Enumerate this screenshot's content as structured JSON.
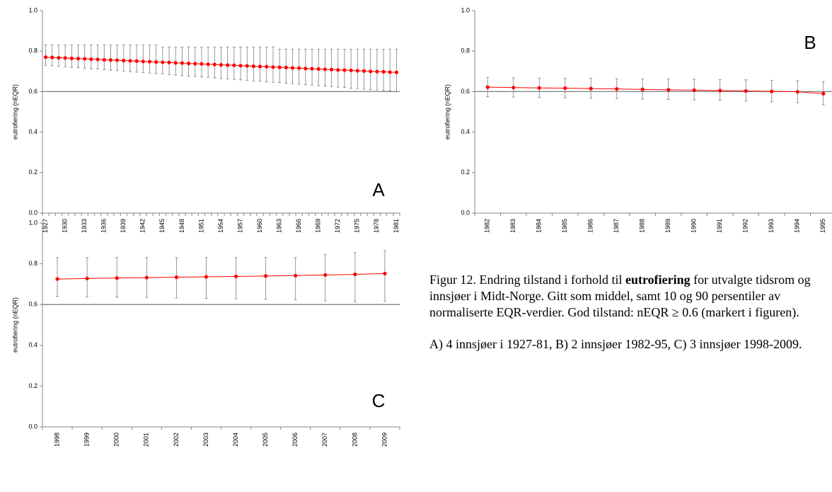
{
  "chart_data": [
    {
      "type": "line",
      "label": "A",
      "y_label": "eutrofiering (nEQR)",
      "categories": [
        "1927",
        null,
        null,
        "1930",
        null,
        null,
        "1933",
        null,
        null,
        "1936",
        null,
        null,
        "1939",
        null,
        null,
        "1942",
        null,
        null,
        "1945",
        null,
        null,
        "1948",
        null,
        null,
        "1951",
        null,
        null,
        "1954",
        null,
        null,
        "1957",
        null,
        null,
        "1960",
        null,
        null,
        "1963",
        null,
        null,
        "1966",
        null,
        null,
        "1969",
        null,
        null,
        "1972",
        null,
        null,
        "1975",
        null,
        null,
        "1978",
        null,
        null,
        "1981"
      ],
      "series": [
        {
          "color": "#ff0000",
          "values": [
            0.77,
            0.769,
            0.767,
            0.766,
            0.764,
            0.763,
            0.762,
            0.76,
            0.759,
            0.757,
            0.756,
            0.755,
            0.753,
            0.752,
            0.751,
            0.749,
            0.748,
            0.746,
            0.745,
            0.744,
            0.742,
            0.741,
            0.739,
            0.738,
            0.737,
            0.735,
            0.734,
            0.732,
            0.731,
            0.73,
            0.728,
            0.727,
            0.725,
            0.724,
            0.723,
            0.721,
            0.72,
            0.719,
            0.717,
            0.716,
            0.714,
            0.713,
            0.712,
            0.71,
            0.709,
            0.707,
            0.706,
            0.705,
            0.703,
            0.702,
            0.7,
            0.699,
            0.698,
            0.696,
            0.695
          ],
          "upper": [
            0.83,
            0.83,
            0.83,
            0.83,
            0.83,
            0.83,
            0.83,
            0.83,
            0.83,
            0.83,
            0.83,
            0.83,
            0.83,
            0.83,
            0.83,
            0.83,
            0.83,
            0.83,
            0.82,
            0.82,
            0.82,
            0.82,
            0.82,
            0.82,
            0.82,
            0.82,
            0.82,
            0.82,
            0.82,
            0.82,
            0.82,
            0.82,
            0.82,
            0.82,
            0.82,
            0.82,
            0.81,
            0.81,
            0.81,
            0.81,
            0.81,
            0.81,
            0.81,
            0.81,
            0.81,
            0.81,
            0.81,
            0.81,
            0.81,
            0.81,
            0.81,
            0.81,
            0.81,
            0.81,
            0.81
          ],
          "lower": [
            0.73,
            0.728,
            0.725,
            0.723,
            0.72,
            0.718,
            0.716,
            0.713,
            0.711,
            0.708,
            0.706,
            0.704,
            0.701,
            0.699,
            0.696,
            0.694,
            0.692,
            0.689,
            0.687,
            0.684,
            0.682,
            0.68,
            0.677,
            0.675,
            0.672,
            0.67,
            0.668,
            0.665,
            0.663,
            0.66,
            0.658,
            0.656,
            0.653,
            0.651,
            0.648,
            0.646,
            0.644,
            0.641,
            0.639,
            0.636,
            0.634,
            0.632,
            0.629,
            0.627,
            0.624,
            0.622,
            0.62,
            0.617,
            0.615,
            0.612,
            0.61,
            0.608,
            0.605,
            0.603,
            0.6
          ]
        }
      ],
      "ylim": [
        0,
        1
      ],
      "yticks": [
        {
          "value": 0,
          "label": "0.0"
        },
        0.2,
        0.4,
        0.6,
        0.8,
        {
          "value": 1,
          "label": "1.0"
        }
      ],
      "hline": 0.6
    },
    {
      "type": "line",
      "label": "B",
      "y_label": "eutrofiering (nEQR)",
      "categories": [
        "1982",
        "1983",
        "1984",
        "1985",
        "1986",
        "1987",
        "1988",
        "1989",
        "1990",
        "1991",
        "1992",
        "1993",
        "1994",
        "1995"
      ],
      "series": [
        {
          "color": "#ff0000",
          "values": [
            0.622,
            0.62,
            0.618,
            0.617,
            0.615,
            0.613,
            0.611,
            0.609,
            0.607,
            0.605,
            0.603,
            0.601,
            0.599,
            0.59
          ],
          "upper": [
            0.67,
            0.668,
            0.667,
            0.666,
            0.665,
            0.664,
            0.663,
            0.662,
            0.661,
            0.66,
            0.658,
            0.656,
            0.654,
            0.65
          ],
          "lower": [
            0.575,
            0.573,
            0.571,
            0.569,
            0.567,
            0.565,
            0.563,
            0.561,
            0.559,
            0.557,
            0.553,
            0.55,
            0.545,
            0.535
          ]
        }
      ],
      "ylim": [
        0,
        1
      ],
      "yticks": [
        {
          "value": 0,
          "label": "0.0"
        },
        0.2,
        0.4,
        0.6,
        0.8,
        {
          "value": 1,
          "label": "1.0"
        }
      ],
      "hline": 0.6
    },
    {
      "type": "line",
      "label": "C",
      "y_label": "eutrofiering (nEQR)",
      "categories": [
        "1998",
        "1999",
        "2000",
        "2001",
        "2002",
        "2003",
        "2004",
        "2005",
        "2006",
        "2007",
        "2008",
        "2009"
      ],
      "series": [
        {
          "color": "#ff0000",
          "values": [
            0.725,
            0.728,
            0.73,
            0.732,
            0.734,
            0.736,
            0.738,
            0.74,
            0.742,
            0.745,
            0.748,
            0.752
          ],
          "upper": [
            0.83,
            0.83,
            0.83,
            0.83,
            0.83,
            0.83,
            0.83,
            0.83,
            0.83,
            0.845,
            0.855,
            0.865
          ],
          "lower": [
            0.64,
            0.638,
            0.636,
            0.634,
            0.632,
            0.63,
            0.628,
            0.626,
            0.624,
            0.618,
            0.612,
            0.615
          ]
        }
      ],
      "ylim": [
        0,
        1
      ],
      "yticks": [
        {
          "value": 0,
          "label": "0.0"
        },
        0.2,
        0.4,
        0.6,
        0.8,
        {
          "value": 1,
          "label": "1.0"
        }
      ],
      "hline": 0.6
    }
  ],
  "caption": {
    "before": "Figur 12. Endring tilstand i forhold til ",
    "bold": "eutrofiering",
    "after": " for utvalgte tidsrom og innsjøer i Midt-Norge. Gitt som middel, samt 10 og 90 persentiler av normaliserte EQR-verdier. God tilstand: nEQR ≥ 0.6 (markert i figuren).",
    "note": "A) 4 innsjøer i 1927-81, B) 2 innsjøer 1982-95, C) 3 innsjøer 1998-2009."
  }
}
